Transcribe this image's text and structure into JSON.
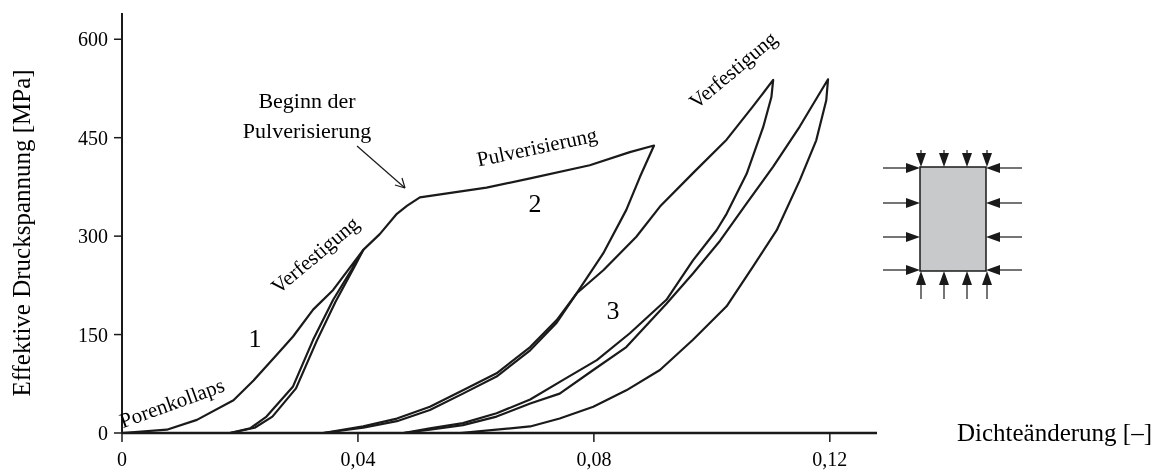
{
  "chart_data": {
    "type": "line",
    "xlabel": "Dichteänderung [–]",
    "ylabel": "Effektive Druckspannung [MPa]",
    "xlim": [
      0,
      0.128
    ],
    "ylim": [
      0,
      640
    ],
    "xticks": [
      0,
      {
        "value": 0.04,
        "label": "0,04"
      },
      {
        "value": 0.08,
        "label": "0,08"
      },
      {
        "value": 0.12,
        "label": "0,12"
      }
    ],
    "yticks": [
      0,
      150,
      300,
      450,
      600
    ],
    "grid": false,
    "marker": "none",
    "line_style": "solid",
    "series": [
      {
        "color": "#1a1a1a",
        "x": [
          0,
          0.0076,
          0.0127,
          0.0189,
          0.0223,
          0.0262,
          0.029,
          0.0324,
          0.0358,
          0.0409,
          0.0392,
          0.0358,
          0.0324,
          0.029,
          0.0245,
          0.0217,
          0.0183
        ],
        "values": [
          0,
          5,
          20,
          50,
          80,
          119,
          147,
          188,
          218,
          279,
          253,
          203,
          142,
          71,
          25,
          7,
          0
        ]
      },
      {
        "color": "#1a1a1a",
        "x": [
          0.0183,
          0.0225,
          0.0255,
          0.0295,
          0.033,
          0.0362,
          0.0395,
          0.0409,
          0.0437,
          0.0466,
          0.0483,
          0.0505,
          0.0618,
          0.0692,
          0.0793,
          0.0861,
          0.0902,
          0.0878,
          0.0855,
          0.0816,
          0.0771,
          0.0737,
          0.0692,
          0.0635,
          0.0578,
          0.0522,
          0.0466,
          0.0409,
          0.0341
        ],
        "values": [
          0,
          8,
          25,
          68,
          140,
          200,
          255,
          279,
          303,
          334,
          346,
          359,
          374,
          388,
          408,
          428,
          438,
          390,
          340,
          274,
          213,
          172,
          131,
          91,
          65,
          40,
          22,
          10,
          0
        ]
      },
      {
        "color": "#1a1a1a",
        "x": [
          0.0341,
          0.0409,
          0.0466,
          0.0522,
          0.0578,
          0.0635,
          0.0692,
          0.0737,
          0.0771,
          0.0816,
          0.0872,
          0.0912,
          0.0968,
          0.1025,
          0.107,
          0.1104,
          0.1101,
          0.1087,
          0.1059,
          0.1025,
          0.1008,
          0.0968,
          0.0923,
          0.0861,
          0.0805,
          0.0748,
          0.0692,
          0.0635,
          0.0578,
          0.0522,
          0.0477
        ],
        "values": [
          0,
          8,
          18,
          35,
          60,
          86,
          126,
          168,
          213,
          248,
          299,
          345,
          396,
          447,
          498,
          538,
          512,
          466,
          395,
          334,
          309,
          263,
          203,
          152,
          111,
          81,
          51,
          30,
          15,
          7,
          0
        ]
      },
      {
        "color": "#1a1a1a",
        "x": [
          0.0477,
          0.0522,
          0.0578,
          0.0635,
          0.0692,
          0.0742,
          0.0799,
          0.0855,
          0.0923,
          0.0968,
          0.1014,
          0.1059,
          0.1104,
          0.1149,
          0.1197,
          0.1194,
          0.1177,
          0.1149,
          0.111,
          0.107,
          0.1025,
          0.0968,
          0.0912,
          0.0855,
          0.0799,
          0.0742,
          0.0692,
          0.0635,
          0.0573
        ],
        "values": [
          0,
          5,
          12,
          25,
          45,
          60,
          96,
          131,
          197,
          243,
          293,
          350,
          406,
          467,
          539,
          507,
          446,
          385,
          309,
          254,
          193,
          142,
          96,
          65,
          40,
          22,
          10,
          5,
          0
        ]
      }
    ],
    "annotations": [
      "Porenkollaps",
      "1",
      "Verfestigung",
      "Beginn der\nPulverisierung",
      "Pulverisierung",
      "2",
      "3",
      "Verfestigung"
    ]
  }
}
